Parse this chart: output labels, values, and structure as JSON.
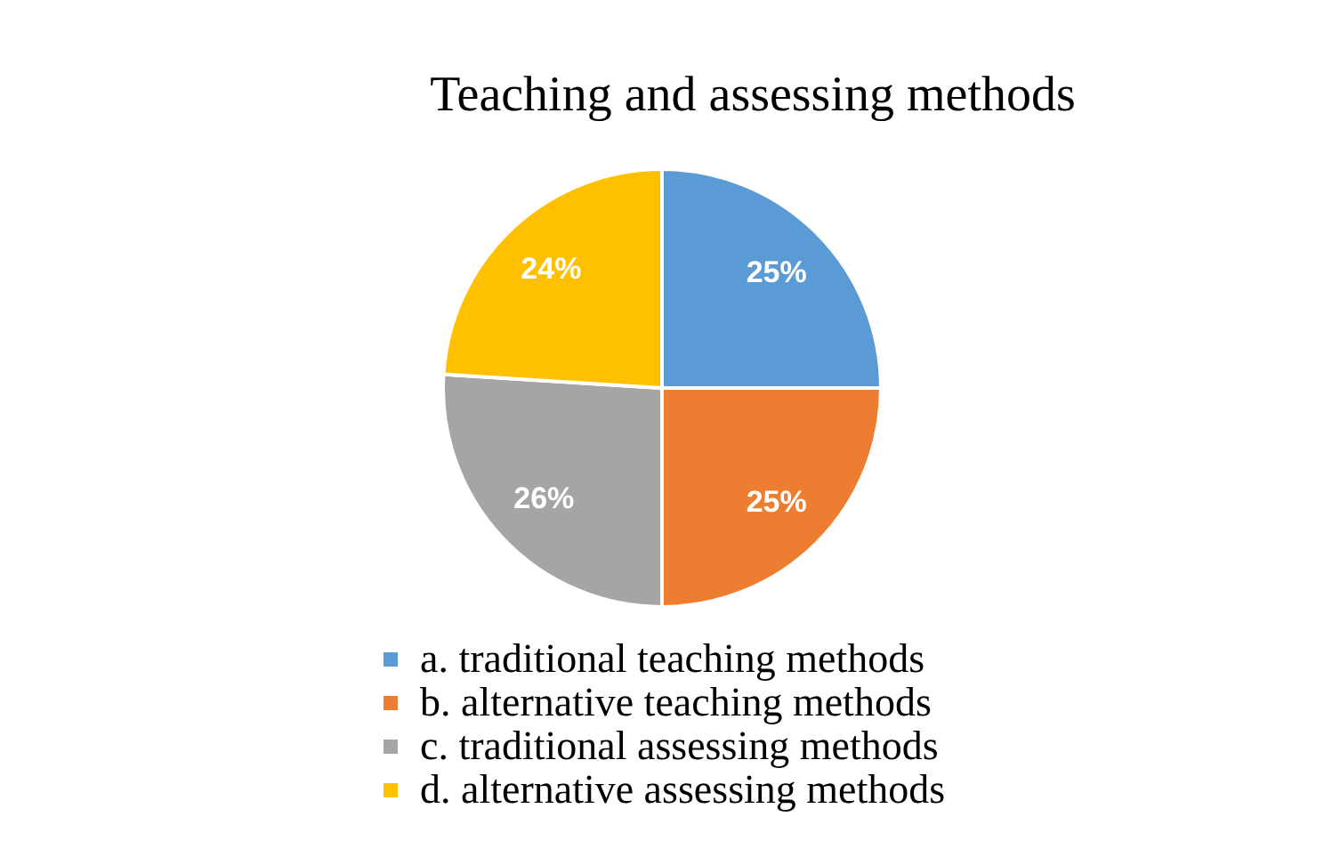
{
  "chart_data": {
    "type": "pie",
    "title": "Teaching and assessing methods",
    "categories": [
      "a. traditional teaching methods",
      "b. alternative teaching methods",
      "c. traditional assessing methods",
      "d. alternative assessing methods"
    ],
    "values": [
      25,
      25,
      26,
      24
    ],
    "value_labels": [
      "25%",
      "25%",
      "26%",
      "24%"
    ],
    "colors": [
      "#5b9bd5",
      "#ed7d31",
      "#a5a5a5",
      "#ffc000"
    ],
    "legend": "bottom"
  }
}
